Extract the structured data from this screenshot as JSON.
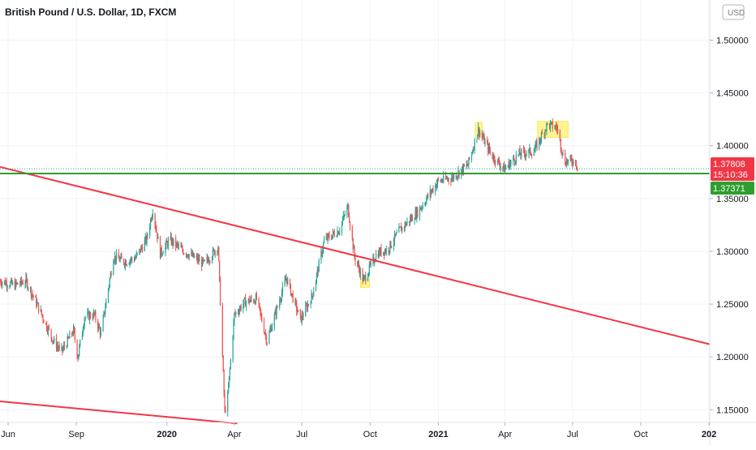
{
  "header": {
    "title": "British Pound / U.S. Dollar, 1D, FXCM"
  },
  "price_scale": {
    "currency_button": "USD",
    "current_price_label": "1.37808",
    "countdown_label": "15:10:36",
    "level_label": "1.37371",
    "colors": {
      "up": "#26a69a",
      "down": "#ef5350",
      "line": "#2e9e2e",
      "accent_red": "#f23645"
    }
  },
  "chart_data": {
    "type": "candlestick",
    "title": "British Pound / U.S. Dollar, 1D, FXCM",
    "xlabel": "",
    "ylabel": "",
    "ylim": [
      1.138,
      1.538
    ],
    "y_ticks": [
      1.15,
      1.2,
      1.25,
      1.3,
      1.35,
      1.4,
      1.45,
      1.5
    ],
    "y_tick_labels": [
      "1.15000",
      "1.20000",
      "1.25000",
      "1.30000",
      "1.35000",
      "1.40000",
      "1.45000",
      "1.50000"
    ],
    "x_range": [
      "2019-05-21",
      "2022-01-02"
    ],
    "x_ticks": [
      {
        "date": "2019-06-01",
        "label": "Jun",
        "bold": false
      },
      {
        "date": "2019-09-01",
        "label": "Sep",
        "bold": false
      },
      {
        "date": "2020-01-01",
        "label": "2020",
        "bold": true
      },
      {
        "date": "2020-04-01",
        "label": "Apr",
        "bold": false
      },
      {
        "date": "2020-07-01",
        "label": "Jul",
        "bold": false
      },
      {
        "date": "2020-10-01",
        "label": "Oct",
        "bold": false
      },
      {
        "date": "2021-01-01",
        "label": "2021",
        "bold": true
      },
      {
        "date": "2021-04-01",
        "label": "Apr",
        "bold": false
      },
      {
        "date": "2021-07-01",
        "label": "Jul",
        "bold": false
      },
      {
        "date": "2021-10-01",
        "label": "Oct",
        "bold": false
      },
      {
        "date": "2022-01-01",
        "label": "202",
        "bold": true
      }
    ],
    "price_path": [
      [
        "2019-05-21",
        1.272
      ],
      [
        "2019-06-10",
        1.268
      ],
      [
        "2019-06-25",
        1.272
      ],
      [
        "2019-07-10",
        1.25
      ],
      [
        "2019-08-01",
        1.215
      ],
      [
        "2019-08-12",
        1.205
      ],
      [
        "2019-08-28",
        1.225
      ],
      [
        "2019-09-03",
        1.2
      ],
      [
        "2019-09-12",
        1.238
      ],
      [
        "2019-09-25",
        1.24
      ],
      [
        "2019-10-04",
        1.222
      ],
      [
        "2019-10-21",
        1.295
      ],
      [
        "2019-11-05",
        1.29
      ],
      [
        "2019-11-20",
        1.294
      ],
      [
        "2019-12-05",
        1.312
      ],
      [
        "2019-12-13",
        1.34
      ],
      [
        "2019-12-23",
        1.298
      ],
      [
        "2020-01-05",
        1.311
      ],
      [
        "2020-01-20",
        1.302
      ],
      [
        "2020-02-05",
        1.295
      ],
      [
        "2020-02-20",
        1.288
      ],
      [
        "2020-03-05",
        1.3
      ],
      [
        "2020-03-10",
        1.305
      ],
      [
        "2020-03-19",
        1.148
      ],
      [
        "2020-03-23",
        1.162
      ],
      [
        "2020-04-01",
        1.24
      ],
      [
        "2020-04-15",
        1.252
      ],
      [
        "2020-05-01",
        1.255
      ],
      [
        "2020-05-15",
        1.215
      ],
      [
        "2020-06-10",
        1.275
      ],
      [
        "2020-06-29",
        1.235
      ],
      [
        "2020-07-15",
        1.258
      ],
      [
        "2020-07-31",
        1.31
      ],
      [
        "2020-08-20",
        1.32
      ],
      [
        "2020-09-01",
        1.342
      ],
      [
        "2020-09-10",
        1.295
      ],
      [
        "2020-09-22",
        1.272
      ],
      [
        "2020-10-10",
        1.298
      ],
      [
        "2020-10-25",
        1.302
      ],
      [
        "2020-11-10",
        1.32
      ],
      [
        "2020-12-05",
        1.338
      ],
      [
        "2020-12-31",
        1.366
      ],
      [
        "2021-01-20",
        1.37
      ],
      [
        "2021-02-10",
        1.382
      ],
      [
        "2021-02-24",
        1.415
      ],
      [
        "2021-03-15",
        1.39
      ],
      [
        "2021-03-31",
        1.378
      ],
      [
        "2021-04-20",
        1.392
      ],
      [
        "2021-05-10",
        1.395
      ],
      [
        "2021-05-28",
        1.42
      ],
      [
        "2021-06-10",
        1.417
      ],
      [
        "2021-06-20",
        1.385
      ],
      [
        "2021-07-05",
        1.386
      ],
      [
        "2021-07-08",
        1.378
      ]
    ],
    "annotations": {
      "horizontal_line": {
        "value": 1.37371,
        "color": "#2e9e2e"
      },
      "trendlines": [
        {
          "from": [
            "2019-05-21",
            1.38
          ],
          "to": [
            "2022-01-02",
            1.212
          ],
          "color": "#f23645"
        },
        {
          "from": [
            "2019-05-21",
            1.158
          ],
          "to": [
            "2020-04-05",
            1.137
          ],
          "color": "#f23645"
        }
      ],
      "highlights": [
        {
          "from": [
            "2021-02-20",
            1.408
          ],
          "to": [
            "2021-03-01",
            1.422
          ],
          "color": "#ffeb3b"
        },
        {
          "from": [
            "2021-05-15",
            1.408
          ],
          "to": [
            "2021-06-25",
            1.423
          ],
          "color": "#ffeb3b"
        },
        {
          "from": [
            "2020-09-18",
            1.266
          ],
          "to": [
            "2020-09-30",
            1.274
          ],
          "color": "#ffeb3b"
        }
      ]
    },
    "last_price": 1.37808
  }
}
